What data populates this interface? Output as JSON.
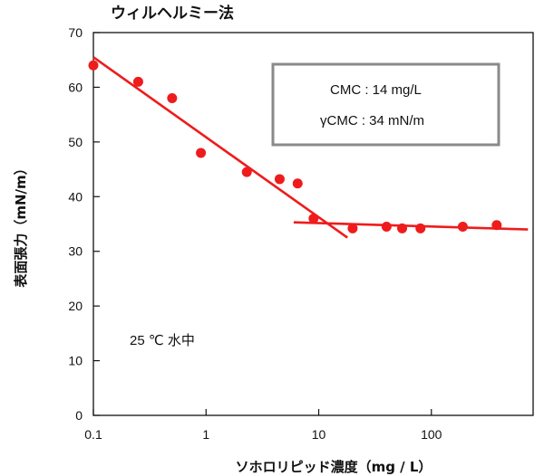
{
  "chart_data": {
    "type": "scatter",
    "title": "ウィルヘルミー法",
    "xlabel": "ソホロリピッド濃度（mg / L）",
    "ylabel": "表面張力（mN/m）",
    "x_scale": "log",
    "xlim": [
      0.1,
      800
    ],
    "ylim": [
      0,
      70
    ],
    "x_ticks": [
      0.1,
      1,
      10,
      100
    ],
    "x_tick_labels": [
      "0.1",
      "1",
      "10",
      "100"
    ],
    "y_ticks": [
      0,
      10,
      20,
      30,
      40,
      50,
      60,
      70
    ],
    "y_tick_labels": [
      "0",
      "10",
      "20",
      "30",
      "40",
      "50",
      "60",
      "70"
    ],
    "grid": false,
    "series": [
      {
        "x": [
          0.1,
          0.25,
          0.5,
          0.9,
          2.3,
          4.5,
          6.5,
          9.0,
          20,
          40,
          55,
          80,
          190,
          380
        ],
        "y": [
          64,
          61,
          58,
          48,
          44.5,
          43.2,
          42.4,
          36,
          34.2,
          34.5,
          34.2,
          34.2,
          34.5,
          34.8
        ],
        "color": "#ee1c1c"
      }
    ],
    "fit_lines": [
      {
        "x": [
          0.1,
          18
        ],
        "y": [
          65.5,
          32.5
        ],
        "color": "#ee1c1c"
      },
      {
        "x": [
          6,
          720
        ],
        "y": [
          35.3,
          34.0
        ],
        "color": "#ee1c1c"
      }
    ],
    "annotations": {
      "box_lines": [
        "CMC : 14 mg/L",
        "γCMC : 34 mN/m"
      ],
      "condition": "25 ℃ 水中"
    }
  }
}
